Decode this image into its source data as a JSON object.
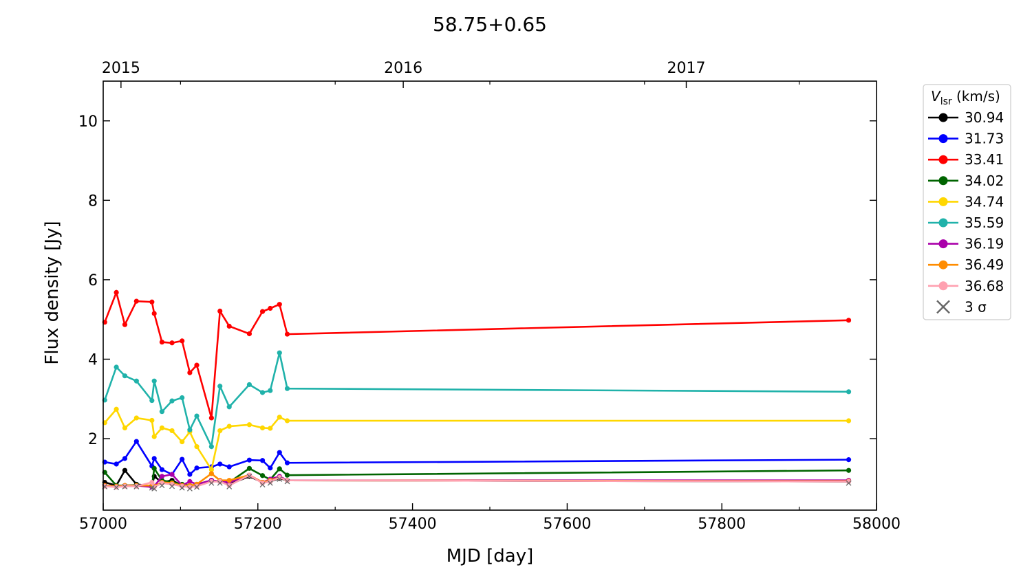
{
  "chart_data": {
    "type": "line",
    "title": "58.75+0.65",
    "xlabel": "MJD [day]",
    "ylabel": "Flux density [Jy]",
    "xlim": [
      57000,
      58000
    ],
    "ylim": [
      0.2,
      11.0
    ],
    "xticks": [
      57000,
      57200,
      57400,
      57600,
      57800,
      58000
    ],
    "yticks": [
      2,
      4,
      6,
      8,
      10
    ],
    "top_axis": {
      "ticks": [
        {
          "label": "2015",
          "mjd": 57023
        },
        {
          "label": "2016",
          "mjd": 57388
        },
        {
          "label": "2017",
          "mjd": 57754
        }
      ]
    },
    "grid": false,
    "legend": {
      "title_main": "V",
      "title_sub": "lsr",
      "title_unit": "(km/s)",
      "placement": "outside-right",
      "sigma_label": "3 σ"
    },
    "x": [
      57002,
      57017,
      57028,
      57043,
      57063,
      57066,
      57076,
      57089,
      57102,
      57112,
      57121,
      57140,
      57151,
      57163,
      57189,
      57206,
      57216,
      57228,
      57238,
      57964
    ],
    "series": [
      {
        "name": "30.94",
        "color": "#000000",
        "values": [
          0.9,
          0.82,
          1.2,
          0.85,
          0.8,
          1.05,
          0.9,
          0.95,
          0.82,
          0.8,
          0.85,
          0.95,
          0.92,
          0.85,
          1.05,
          0.9,
          0.92,
          1.0,
          0.95,
          0.92
        ]
      },
      {
        "name": "31.73",
        "color": "#0000ff",
        "values": [
          1.41,
          1.36,
          1.5,
          1.93,
          1.31,
          1.5,
          1.22,
          1.1,
          1.48,
          1.1,
          1.26,
          1.29,
          1.36,
          1.29,
          1.46,
          1.45,
          1.26,
          1.65,
          1.39,
          1.47
        ]
      },
      {
        "name": "33.41",
        "color": "#ff0000",
        "values": [
          4.93,
          5.68,
          4.87,
          5.46,
          5.44,
          5.15,
          4.43,
          4.41,
          4.46,
          3.66,
          3.85,
          2.52,
          5.21,
          4.83,
          4.64,
          5.2,
          5.28,
          5.38,
          4.63,
          4.98
        ]
      },
      {
        "name": "34.02",
        "color": "#006400",
        "values": [
          1.15,
          0.82,
          0.82,
          0.83,
          0.8,
          1.25,
          0.95,
          0.9,
          0.85,
          0.82,
          0.83,
          0.95,
          0.92,
          0.9,
          1.25,
          1.07,
          0.97,
          1.24,
          1.08,
          1.2
        ]
      },
      {
        "name": "34.74",
        "color": "#ffd700",
        "values": [
          2.4,
          2.74,
          2.27,
          2.52,
          2.46,
          2.05,
          2.27,
          2.2,
          1.92,
          2.17,
          1.8,
          1.22,
          2.2,
          2.31,
          2.35,
          2.27,
          2.26,
          2.54,
          2.45,
          2.45
        ]
      },
      {
        "name": "35.59",
        "color": "#20b2aa",
        "values": [
          2.97,
          3.8,
          3.58,
          3.45,
          2.96,
          3.45,
          2.68,
          2.95,
          3.03,
          2.22,
          2.57,
          1.8,
          3.32,
          2.8,
          3.36,
          3.16,
          3.21,
          4.16,
          3.26,
          3.18
        ]
      },
      {
        "name": "36.19",
        "color": "#aa00aa",
        "values": [
          0.82,
          0.8,
          0.82,
          0.82,
          0.78,
          0.8,
          1.05,
          1.1,
          0.82,
          0.92,
          0.85,
          0.95,
          0.92,
          0.9,
          1.08,
          0.9,
          0.98,
          1.05,
          0.95,
          0.95
        ]
      },
      {
        "name": "36.49",
        "color": "#ff8c00",
        "values": [
          0.82,
          0.8,
          0.82,
          0.82,
          0.82,
          0.8,
          0.9,
          0.88,
          0.82,
          0.82,
          0.85,
          1.12,
          0.95,
          0.95,
          1.08,
          0.9,
          0.95,
          1.02,
          0.95,
          0.93
        ]
      },
      {
        "name": "36.68",
        "color": "#ffa0b0",
        "values": [
          0.8,
          0.78,
          0.8,
          0.8,
          0.9,
          0.78,
          0.88,
          0.85,
          0.8,
          0.78,
          0.8,
          0.92,
          0.92,
          0.82,
          1.08,
          0.88,
          0.92,
          1.02,
          0.95,
          0.92
        ]
      }
    ],
    "three_sigma": {
      "name": "3 σ",
      "color": "#666666",
      "values": [
        0.79,
        0.77,
        0.79,
        0.79,
        0.76,
        0.74,
        0.82,
        0.8,
        0.76,
        0.74,
        0.78,
        0.88,
        0.88,
        0.79,
        1.05,
        0.84,
        0.88,
        0.98,
        0.92,
        0.88
      ]
    }
  }
}
